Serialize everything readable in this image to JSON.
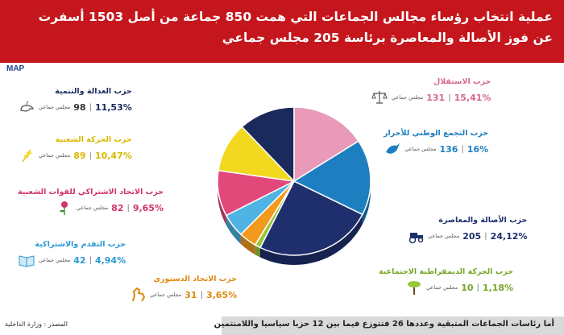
{
  "header": {
    "title_line1": "عملية انتخاب رؤساء مجالس الجماعات التي همت 850 جماعة من أصل 1503 أسفرت",
    "title_line2": "عن فوز الأصالة والمعاصرة برئاسة 205 مجلس جماعي"
  },
  "logo": "MAP",
  "seat_unit": "مجلس جماعي",
  "footer": {
    "note": "أما رئاسات الجماعات المتبقية وعددها 26 فتتوزع فيما بين 12 حزبا سياسيا واللامنتمين",
    "source": "المصدر : وزارة الداخلية"
  },
  "colors": {
    "header_bg": "#c4161c",
    "pam": "#1f2f6e",
    "rni": "#1e7fc0",
    "istiqlal": "#e89ab8",
    "pjd": "#1b2a5c",
    "mp": "#f2d81e",
    "usfp": "#e0497a",
    "pps": "#4fb3e3",
    "uc": "#f29a1d",
    "mds": "#9bc53d"
  },
  "chart_data": {
    "type": "pie",
    "title": "",
    "unit": "مجلس جماعي",
    "series": [
      {
        "key": "pam",
        "name": "حزب الأصالة والمعاصرة",
        "value": 205,
        "percent": "24,12%",
        "icon": "tractor-icon"
      },
      {
        "key": "mds",
        "name": "حزب الحركة الديمقراطية الاجتماعية",
        "value": 10,
        "percent": "1,18%",
        "icon": "palm-tree-icon"
      },
      {
        "key": "uc",
        "name": "حزب الاتحاد الدستوري",
        "value": 31,
        "percent": "3,65%",
        "icon": "horse-icon"
      },
      {
        "key": "pps",
        "name": "حزب التقدم والاشتراكية",
        "value": 42,
        "percent": "4,94%",
        "icon": "book-icon"
      },
      {
        "key": "usfp",
        "name": "حزب الاتحاد الاشتراكي للقوات الشعبية",
        "value": 82,
        "percent": "9,65%",
        "icon": "rose-icon"
      },
      {
        "key": "mp",
        "name": "حزب الحركة الشعبية",
        "value": 89,
        "percent": "10,47%",
        "icon": "ear-of-wheat-icon"
      },
      {
        "key": "pjd",
        "name": "حزب العدالة والتنمية",
        "value": 98,
        "percent": "11,53%",
        "icon": "lamp-icon"
      },
      {
        "key": "istiqlal",
        "name": "حزب الاستقلال",
        "value": 131,
        "percent": "15,41%",
        "icon": "scales-icon"
      },
      {
        "key": "rni",
        "name": "حزب التجمع الوطني للأحرار",
        "value": 136,
        "percent": "16%",
        "icon": "bird-icon"
      }
    ]
  }
}
